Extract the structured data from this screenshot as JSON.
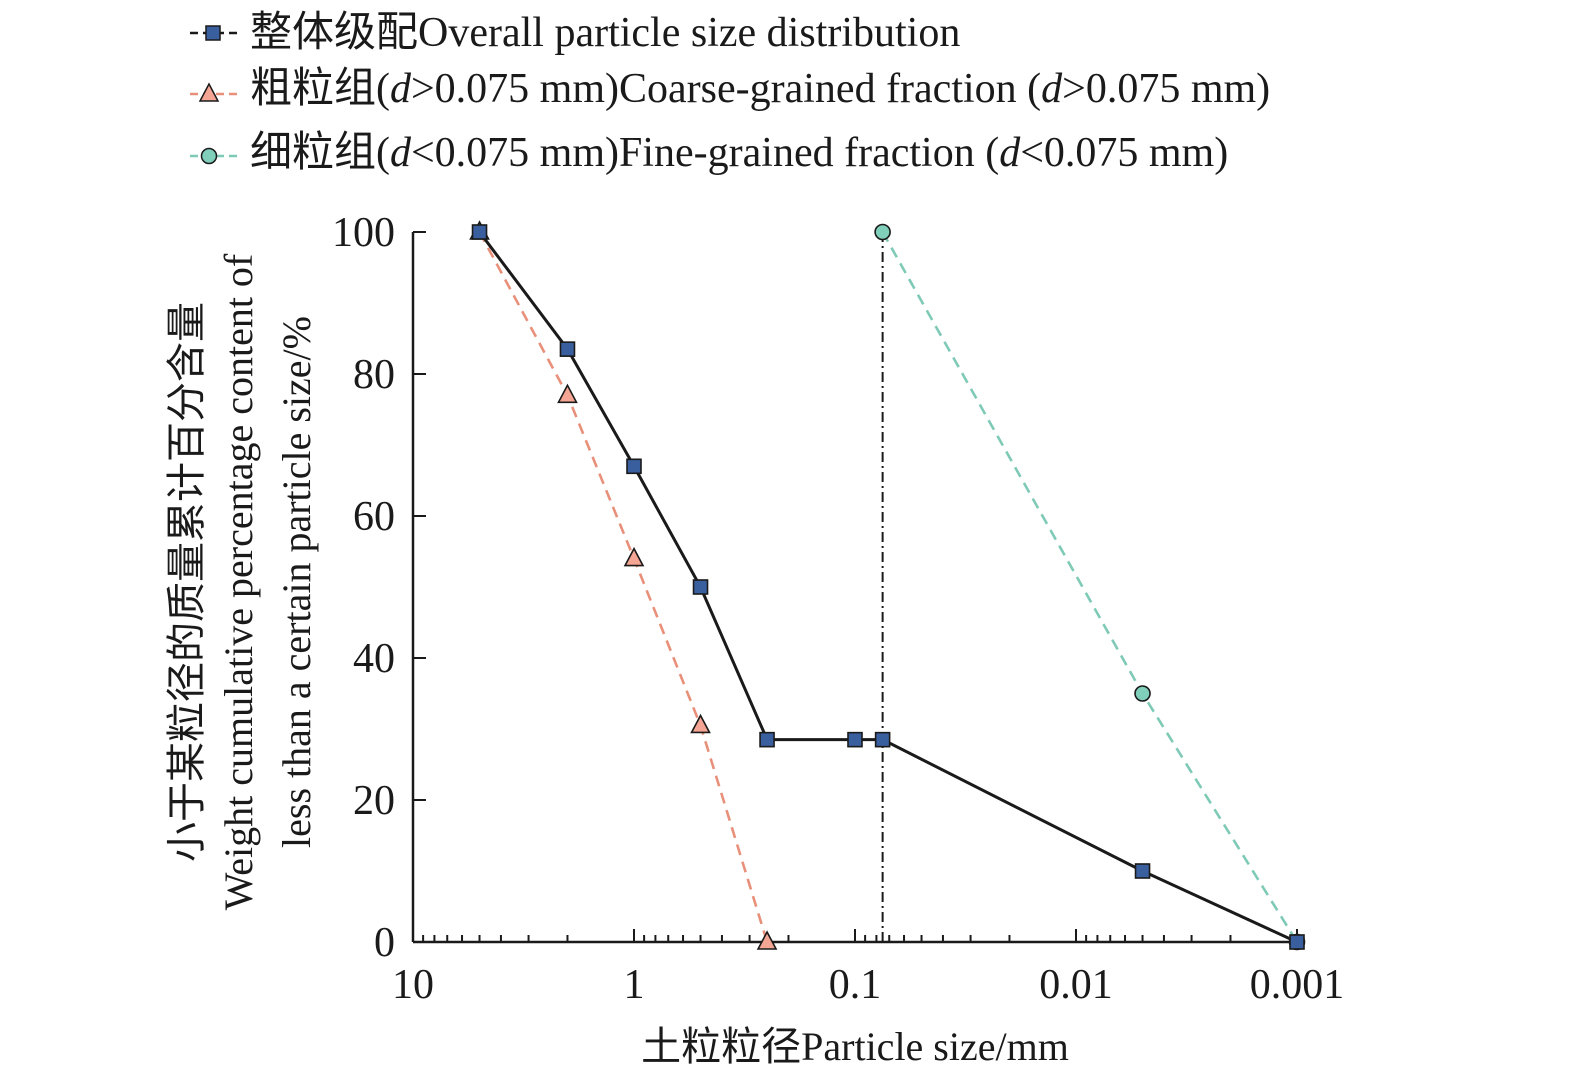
{
  "chart_data": {
    "type": "line",
    "x_scale": "log",
    "x_reversed": true,
    "xlim": [
      10,
      0.001
    ],
    "ylim": [
      0,
      100
    ],
    "xlabel": "土粒粒径Particle size/mm",
    "ylabel_lines": [
      "小于某粒径的质量累计百分含量",
      "Weight cumulative percentage content of",
      "less than a certain particle size/%"
    ],
    "x_ticks": [
      10,
      1,
      0.1,
      0.01,
      0.001
    ],
    "x_tick_labels": [
      "10",
      "1",
      "0.1",
      "0.01",
      "0.001"
    ],
    "y_ticks": [
      0,
      20,
      40,
      60,
      80,
      100
    ],
    "y_tick_labels": [
      "0",
      "20",
      "40",
      "60",
      "80",
      "100"
    ],
    "reference_line": {
      "x": 0.075,
      "style": "dash-dot",
      "color": "#1a1a1a"
    },
    "legend_position": "top",
    "series": [
      {
        "name": "整体级配Overall particle size distribution",
        "color": "#1a1a1a",
        "marker": "square",
        "marker_color": "#3a5f9e",
        "line_style": "solid",
        "x": [
          5,
          2,
          1,
          0.5,
          0.25,
          0.1,
          0.075,
          0.005,
          0.001
        ],
        "y": [
          100,
          83.5,
          67,
          50,
          28.5,
          28.5,
          28.5,
          10,
          0
        ]
      },
      {
        "name": "粗粒组(d>0.075 mm)Coarse-grained fraction (d>0.075 mm)",
        "color": "#e8907a",
        "marker": "triangle",
        "marker_color": "#f4a593",
        "line_style": "dashed",
        "x": [
          5,
          2,
          1,
          0.5,
          0.25
        ],
        "y": [
          100,
          77,
          54,
          30.5,
          0
        ]
      },
      {
        "name": "细粒组(d<0.075 mm)Fine-grained fraction (d<0.075 mm)",
        "color": "#7fcab6",
        "marker": "circle",
        "marker_color": "#80cfba",
        "line_style": "dashed",
        "x": [
          0.075,
          0.005,
          0.001
        ],
        "y": [
          100,
          35,
          0
        ]
      }
    ]
  }
}
